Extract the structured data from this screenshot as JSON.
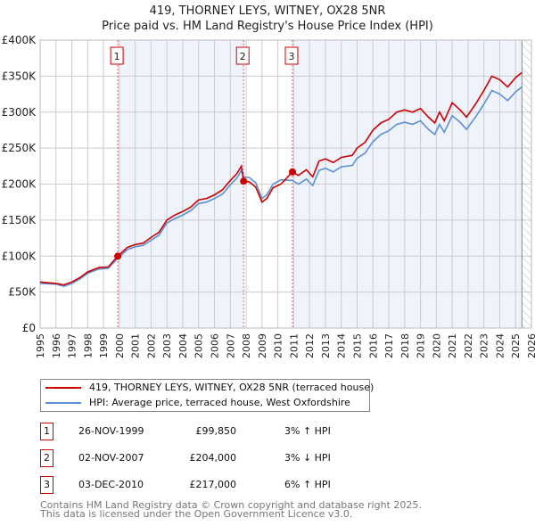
{
  "title": "419, THORNEY LEYS, WITNEY, OX28 5NR",
  "subtitle": "Price paid vs. HM Land Registry's House Price Index (HPI)",
  "chart_data": {
    "type": "line",
    "xlim": [
      1995,
      2026
    ],
    "ylim": [
      0,
      400000
    ],
    "yticks": [
      "£0",
      "£50K",
      "£100K",
      "£150K",
      "£200K",
      "£250K",
      "£300K",
      "£350K",
      "£400K"
    ],
    "ytick_values": [
      0,
      50000,
      100000,
      150000,
      200000,
      250000,
      300000,
      350000,
      400000
    ],
    "xticks": [
      "1995",
      "1996",
      "1997",
      "1998",
      "1999",
      "2000",
      "2001",
      "2002",
      "2003",
      "2004",
      "2005",
      "2006",
      "2007",
      "2008",
      "2009",
      "2010",
      "2011",
      "2012",
      "2013",
      "2014",
      "2015",
      "2016",
      "2017",
      "2018",
      "2019",
      "2020",
      "2021",
      "2022",
      "2023",
      "2024",
      "2025",
      "2026"
    ],
    "x": [
      1995,
      1996,
      1996.5,
      1997,
      1997.5,
      1998,
      1998.7,
      1999.3,
      1999.9,
      2000.5,
      2001,
      2001.5,
      2002,
      2002.5,
      2003,
      2003.5,
      2004,
      2004.5,
      2005,
      2005.5,
      2006,
      2006.5,
      2007,
      2007.4,
      2007.7,
      2007.84,
      2008.2,
      2008.6,
      2009,
      2009.3,
      2009.7,
      2010.2,
      2010.92,
      2011.3,
      2011.8,
      2012.2,
      2012.6,
      2013,
      2013.5,
      2014,
      2014.7,
      2015,
      2015.5,
      2016,
      2016.5,
      2017,
      2017.5,
      2018,
      2018.5,
      2019,
      2019.5,
      2019.9,
      2020.2,
      2020.5,
      2021,
      2021.5,
      2021.9,
      2022.5,
      2023,
      2023.5,
      2024,
      2024.5,
      2025,
      2025.4
    ],
    "series": [
      {
        "name": "419, THORNEY LEYS, WITNEY, OX28 5NR (terraced house)",
        "color": "#cc0000",
        "values": [
          64,
          62,
          60,
          64,
          70,
          78,
          84,
          85,
          99.85,
          112,
          116,
          118,
          126,
          133,
          150,
          157,
          162,
          168,
          178,
          180,
          185,
          192,
          205,
          214,
          225,
          204,
          203,
          196,
          175,
          180,
          195,
          200,
          217,
          212,
          220,
          210,
          232,
          235,
          230,
          237,
          240,
          250,
          258,
          275,
          285,
          290,
          300,
          303,
          300,
          305,
          293,
          285,
          300,
          288,
          313,
          303,
          293,
          312,
          330,
          350,
          345,
          335,
          348,
          355
        ]
      },
      {
        "name": "HPI: Average price, terraced house, West Oxfordshire",
        "color": "#5b8fd4",
        "values": [
          62,
          61,
          58,
          62,
          68,
          76,
          82,
          83,
          97,
          109,
          113,
          115,
          122,
          129,
          146,
          152,
          157,
          163,
          173,
          175,
          180,
          186,
          199,
          208,
          219,
          210,
          209,
          202,
          180,
          185,
          200,
          206,
          205,
          200,
          207,
          198,
          219,
          222,
          217,
          224,
          226,
          236,
          243,
          259,
          269,
          274,
          283,
          286,
          283,
          288,
          276,
          269,
          283,
          272,
          295,
          286,
          276,
          294,
          311,
          330,
          325,
          316,
          328,
          335
        ]
      }
    ],
    "value_unit": "thousands GBP",
    "sales": [
      {
        "label": "1",
        "x": 1999.9,
        "date": "26-NOV-1999",
        "price": "£99,850",
        "value": 99.85,
        "hpi": "3% ↑ HPI"
      },
      {
        "label": "2",
        "x": 2007.84,
        "date": "02-NOV-2007",
        "price": "£204,000",
        "value": 204,
        "hpi": "3% ↓ HPI"
      },
      {
        "label": "3",
        "x": 2010.92,
        "date": "03-DEC-2010",
        "price": "£217,000",
        "value": 217,
        "hpi": "6% ↑ HPI"
      }
    ],
    "shaded": [
      [
        1999.9,
        2007.84
      ],
      [
        2010.92,
        2025.4
      ]
    ],
    "hatch_from": 2025.4,
    "grid": true,
    "legend": "bottom"
  },
  "footer": [
    "Contains HM Land Registry data © Crown copyright and database right 2025.",
    "This data is licensed under the Open Government Licence v3.0."
  ]
}
